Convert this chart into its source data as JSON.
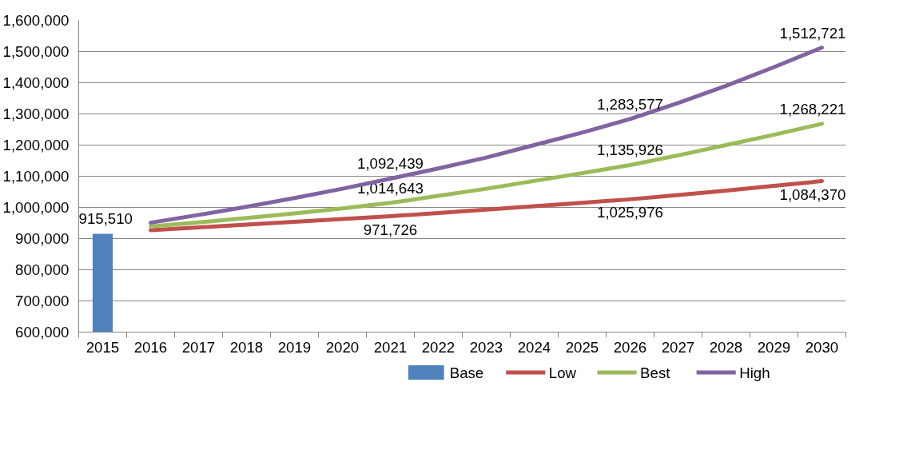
{
  "chart_data": {
    "type": "line",
    "categories": [
      "2015",
      "2016",
      "2017",
      "2018",
      "2019",
      "2020",
      "2021",
      "2022",
      "2023",
      "2024",
      "2025",
      "2026",
      "2027",
      "2028",
      "2029",
      "2030"
    ],
    "series": [
      {
        "name": "Base",
        "type": "bar",
        "color": "#4f81bd",
        "values": [
          915510,
          null,
          null,
          null,
          null,
          null,
          null,
          null,
          null,
          null,
          null,
          null,
          null,
          null,
          null,
          null
        ],
        "value_labels": [
          "915,510",
          null,
          null,
          null,
          null,
          null,
          null,
          null,
          null,
          null,
          null,
          null,
          null,
          null,
          null,
          null
        ]
      },
      {
        "name": "Low",
        "color": "#c0504d",
        "values": [
          null,
          927000,
          936000,
          945000,
          954000,
          963000,
          971726,
          982000,
          993000,
          1004000,
          1015000,
          1025976,
          1040000,
          1054000,
          1069000,
          1084370
        ],
        "value_labels": [
          null,
          null,
          null,
          null,
          null,
          null,
          "971,726",
          null,
          null,
          null,
          null,
          "1,025,976",
          null,
          null,
          null,
          "1,084,370"
        ]
      },
      {
        "name": "Best",
        "color": "#9bbb59",
        "values": [
          null,
          939000,
          952000,
          966000,
          981000,
          997000,
          1014643,
          1037000,
          1060000,
          1085000,
          1110000,
          1135926,
          1167000,
          1200000,
          1233000,
          1268221
        ],
        "value_labels": [
          null,
          null,
          null,
          null,
          null,
          null,
          "1,014,643",
          null,
          null,
          null,
          null,
          "1,135,926",
          null,
          null,
          null,
          "1,268,221"
        ]
      },
      {
        "name": "High",
        "color": "#8064a2",
        "values": [
          null,
          951000,
          976000,
          1002000,
          1030000,
          1060000,
          1092439,
          1125000,
          1160000,
          1200000,
          1240000,
          1283577,
          1335000,
          1390000,
          1450000,
          1512721
        ],
        "value_labels": [
          null,
          null,
          null,
          null,
          null,
          null,
          "1,092,439",
          null,
          null,
          null,
          null,
          "1,283,577",
          null,
          null,
          null,
          "1,512,721"
        ]
      }
    ],
    "ylim": [
      600000,
      1600000
    ],
    "yticks": [
      {
        "value": 600000,
        "label": "600,000"
      },
      {
        "value": 700000,
        "label": "700,000"
      },
      {
        "value": 800000,
        "label": "800,000"
      },
      {
        "value": 900000,
        "label": "900,000"
      },
      {
        "value": 1000000,
        "label": "1,000,000"
      },
      {
        "value": 1100000,
        "label": "1,100,000"
      },
      {
        "value": 1200000,
        "label": "1,200,000"
      },
      {
        "value": 1300000,
        "label": "1,300,000"
      },
      {
        "value": 1400000,
        "label": "1,400,000"
      },
      {
        "value": 1500000,
        "label": "1,500,000"
      },
      {
        "value": 1600000,
        "label": "1,600,000"
      }
    ],
    "grid": "y",
    "legend": "bottom",
    "marker": "none",
    "line_style": "solid"
  }
}
